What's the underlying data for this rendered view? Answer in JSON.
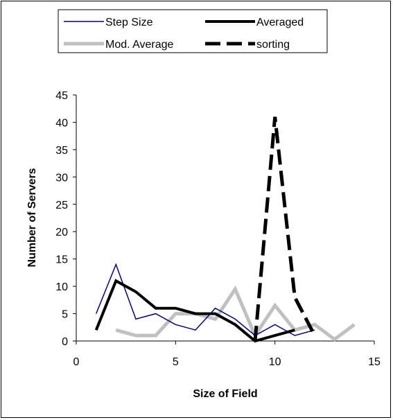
{
  "chart_data": {
    "type": "line",
    "xlabel": "Size of Field",
    "ylabel": "Number of Servers",
    "xlim": [
      0,
      15
    ],
    "ylim": [
      0,
      45
    ],
    "x_ticks": [
      0,
      5,
      10,
      15
    ],
    "y_ticks": [
      0,
      5,
      10,
      15,
      20,
      25,
      30,
      35,
      40,
      45
    ],
    "grid": false,
    "legend_position": "top",
    "series": [
      {
        "name": "Step Size",
        "color": "#000080",
        "style": "thin-solid",
        "points": [
          [
            1,
            5
          ],
          [
            2,
            14
          ],
          [
            3,
            4
          ],
          [
            4,
            5
          ],
          [
            5,
            3
          ],
          [
            6,
            2
          ],
          [
            7,
            6
          ],
          [
            8,
            4
          ],
          [
            9,
            1
          ],
          [
            10,
            3
          ],
          [
            11,
            1
          ],
          [
            12,
            2
          ]
        ]
      },
      {
        "name": "Averaged",
        "color": "#000000",
        "style": "thick-solid",
        "points": [
          [
            1,
            2
          ],
          [
            2,
            11
          ],
          [
            3,
            9
          ],
          [
            4,
            6
          ],
          [
            5,
            6
          ],
          [
            6,
            5
          ],
          [
            7,
            5
          ],
          [
            8,
            3
          ],
          [
            9,
            0
          ],
          [
            10,
            1
          ],
          [
            11,
            2
          ]
        ]
      },
      {
        "name": "Mod. Average",
        "color": "#c0c0c0",
        "style": "thick-gray",
        "points": [
          [
            2,
            2
          ],
          [
            3,
            1
          ],
          [
            4,
            1
          ],
          [
            5,
            5
          ],
          [
            6,
            5
          ],
          [
            7,
            4
          ],
          [
            8,
            9.5
          ],
          [
            9,
            1
          ],
          [
            10,
            6.5
          ],
          [
            11,
            2
          ],
          [
            12,
            3
          ],
          [
            13,
            0.3
          ],
          [
            14,
            3
          ]
        ]
      },
      {
        "name": "sorting",
        "color": "#000000",
        "style": "thick-dashed",
        "points": [
          [
            9,
            0
          ],
          [
            10,
            41
          ],
          [
            11,
            8
          ],
          [
            12,
            1
          ]
        ]
      }
    ]
  }
}
